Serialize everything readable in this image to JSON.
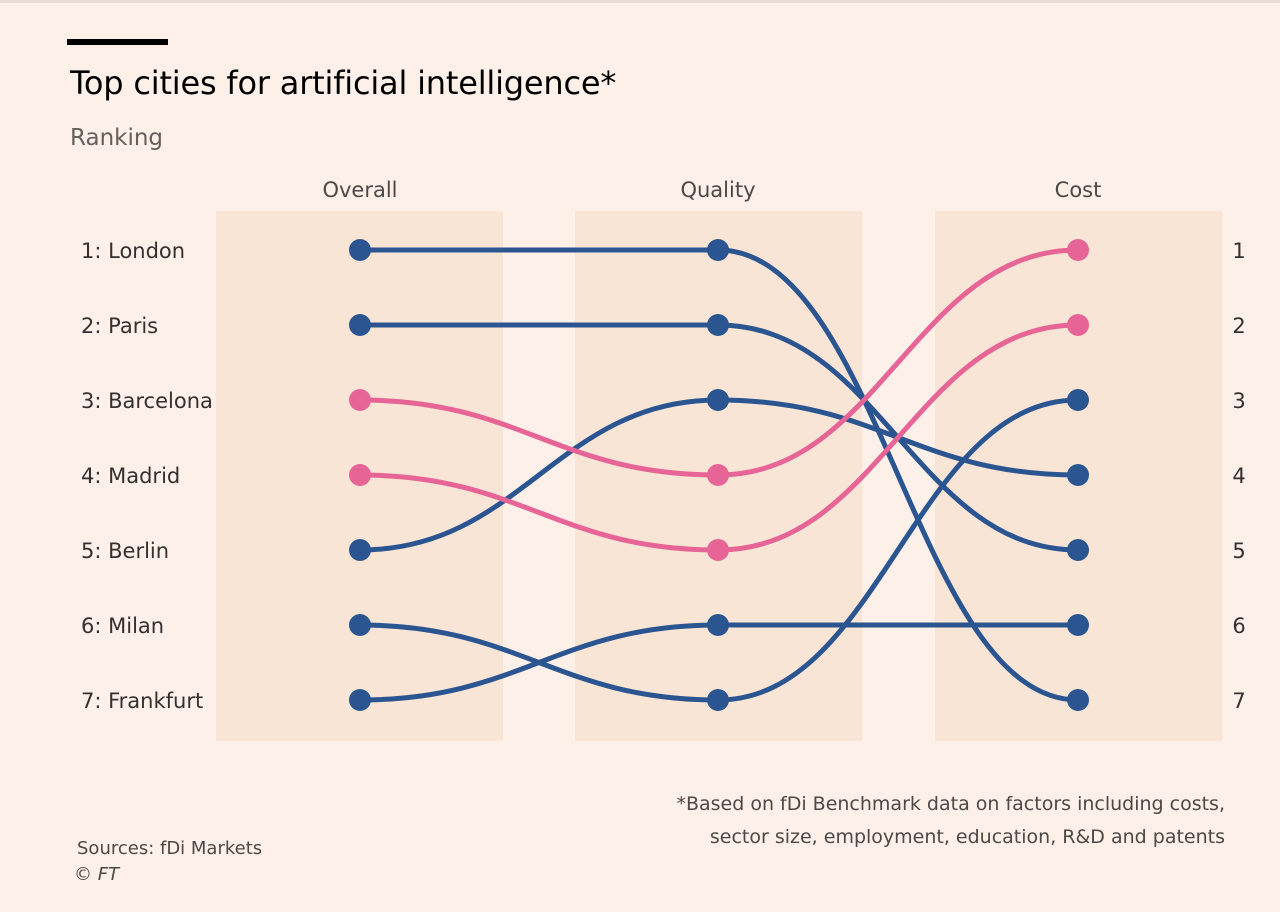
{
  "title": "Top cities for artificial intelligence*",
  "subtitle": "Ranking",
  "footnote": {
    "line1": "*Based on fDi Benchmark data on factors including costs,",
    "line2": "sector size, employment, education, R&D and patents"
  },
  "sources": "Sources: fDi Markets",
  "copyright": "© FT",
  "colors": {
    "background": "#fdf0e8",
    "band": "#f9e5d6",
    "blue": "#2a5591",
    "pink": "#e76596"
  },
  "chart_data": {
    "type": "slope",
    "columns": [
      "Overall",
      "Quality",
      "Cost"
    ],
    "row_labels": [
      "1: London",
      "2: Paris",
      "3: Barcelona",
      "4: Madrid",
      "5: Berlin",
      "6: Milan",
      "7: Frankfurt"
    ],
    "rank_ticks": [
      "1",
      "2",
      "3",
      "4",
      "5",
      "6",
      "7"
    ],
    "rank_range": [
      1,
      7
    ],
    "series": [
      {
        "name": "London",
        "ranks": [
          1,
          1,
          7
        ],
        "color": "blue"
      },
      {
        "name": "Paris",
        "ranks": [
          2,
          2,
          5
        ],
        "color": "blue"
      },
      {
        "name": "Barcelona",
        "ranks": [
          3,
          4,
          1
        ],
        "color": "pink"
      },
      {
        "name": "Madrid",
        "ranks": [
          4,
          5,
          2
        ],
        "color": "pink"
      },
      {
        "name": "Berlin",
        "ranks": [
          5,
          3,
          4
        ],
        "color": "blue"
      },
      {
        "name": "Milan",
        "ranks": [
          6,
          7,
          3
        ],
        "color": "blue"
      },
      {
        "name": "Frankfurt",
        "ranks": [
          7,
          6,
          6
        ],
        "color": "blue"
      }
    ]
  }
}
